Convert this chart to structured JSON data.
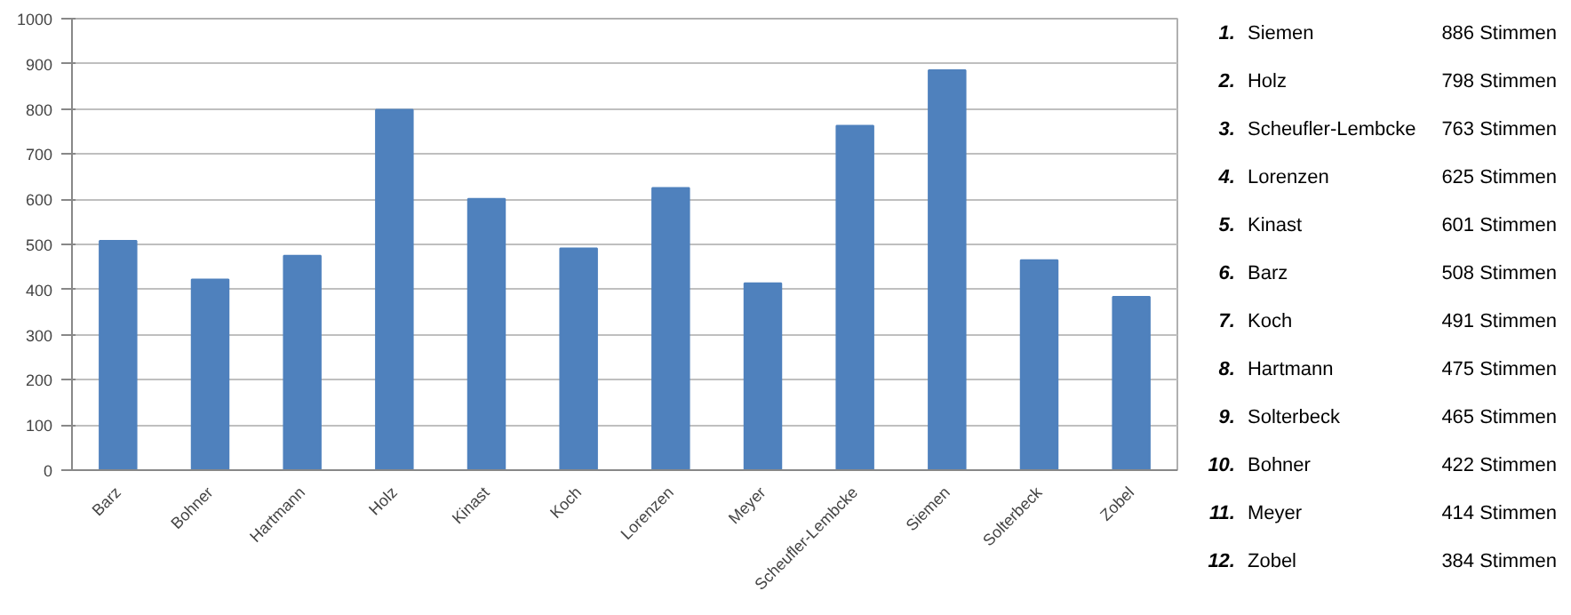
{
  "chart_data": {
    "type": "bar",
    "categories": [
      "Barz",
      "Bohner",
      "Hartmann",
      "Holz",
      "Kinast",
      "Koch",
      "Lorenzen",
      "Meyer",
      "Scheufler-Lembcke",
      "Siemen",
      "Solterbeck",
      "Zobel"
    ],
    "values": [
      508,
      422,
      475,
      798,
      601,
      491,
      625,
      414,
      763,
      886,
      465,
      384
    ],
    "color": "#4f81bd",
    "ylim": [
      0,
      1000
    ],
    "yticks": [
      0,
      100,
      200,
      300,
      400,
      500,
      600,
      700,
      800,
      900,
      1000
    ],
    "grid": "y",
    "legend": false,
    "annotations": [
      "1.",
      "Siemen",
      "886 Stimmen",
      "2.",
      "Holz",
      "798 Stimmen",
      "3.",
      "Scheufler-Lembcke",
      "763 Stimmen",
      "4.",
      "Lorenzen",
      "625 Stimmen",
      "5.",
      "Kinast",
      "601 Stimmen",
      "6.",
      "Barz",
      "508 Stimmen",
      "7.",
      "Koch",
      "491 Stimmen",
      "8.",
      "Hartmann",
      "475 Stimmen",
      "9.",
      "Solterbeck",
      "465 Stimmen",
      "10.",
      "Bohner",
      "422 Stimmen",
      "11.",
      "Meyer",
      "414 Stimmen",
      "12.",
      "Zobel",
      "384 Stimmen"
    ]
  }
}
